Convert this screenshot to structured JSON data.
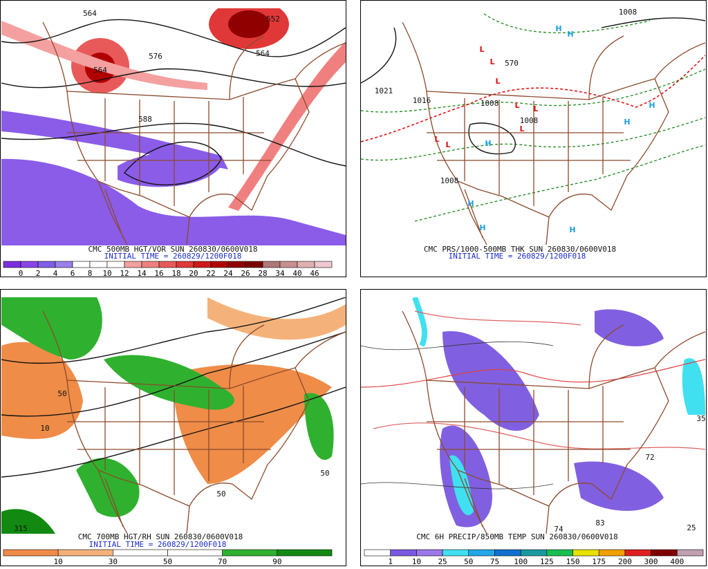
{
  "panels": [
    {
      "caption": "CMC 500MB HGT/VOR SUN 260830/0600V018",
      "initial_time": "INITIAL TIME = 260829/1200F018",
      "colorbar": {
        "labels": [
          0,
          2,
          4,
          6,
          8,
          10,
          12,
          14,
          16,
          18,
          20,
          22,
          24,
          26,
          28,
          34,
          40,
          46
        ],
        "colors": [
          "#7b2fe0",
          "#8a46e8",
          "#7f5fe6",
          "#9a80e8",
          "#ffffff",
          "#ffffff",
          "#ffffff",
          "#f4a0a0",
          "#f08080",
          "#e85a5a",
          "#e03838",
          "#d01818",
          "#b00000",
          "#900000",
          "#7a0000",
          "#b07878",
          "#c89090",
          "#e0b0b0",
          "#f0c8d0"
        ]
      },
      "map_labels": [
        "564",
        "552",
        "564",
        "576",
        "588",
        "564"
      ]
    },
    {
      "caption": "CMC PRS/1000-500MB THK SUN 260830/0600V018",
      "initial_time": "INITIAL TIME = 260829/1200F018",
      "map_labels": [
        "1008",
        "1021",
        "1016",
        "1008",
        "1008",
        "1008",
        "570"
      ],
      "highs": [
        "H",
        "H",
        "H",
        "H",
        "H",
        "H",
        "H",
        "H"
      ],
      "lows": [
        "L",
        "L",
        "L",
        "L",
        "L",
        "L",
        "L",
        "L"
      ]
    },
    {
      "caption": "CMC 700MB HGT/RH SUN 260830/0600V018",
      "initial_time": "INITIAL TIME = 260829/1200F018",
      "colorbar": {
        "labels": [
          10,
          30,
          50,
          70,
          90
        ],
        "colors": [
          "#ef8c48",
          "#f4b27a",
          "#ffffff",
          "#ffffff",
          "#2fb12f",
          "#128a12"
        ]
      },
      "map_labels": [
        "315",
        "50",
        "50",
        "10",
        "50"
      ]
    },
    {
      "caption": "CMC 6H PRECIP/850MB TEMP SUN 260830/0600V018",
      "colorbar": {
        "labels": [
          1,
          10,
          25,
          50,
          75,
          100,
          125,
          150,
          175,
          200,
          300,
          400
        ],
        "colors": [
          "#ffffff",
          "#7a5ae0",
          "#9c78ea",
          "#40e0f0",
          "#20a8e8",
          "#1070d0",
          "#1a9aa0",
          "#18c050",
          "#e8e000",
          "#f0a000",
          "#e02020",
          "#800000",
          "#c0a0b0"
        ]
      },
      "map_labels": [
        "72",
        "74",
        "83",
        "35",
        "25"
      ]
    }
  ]
}
